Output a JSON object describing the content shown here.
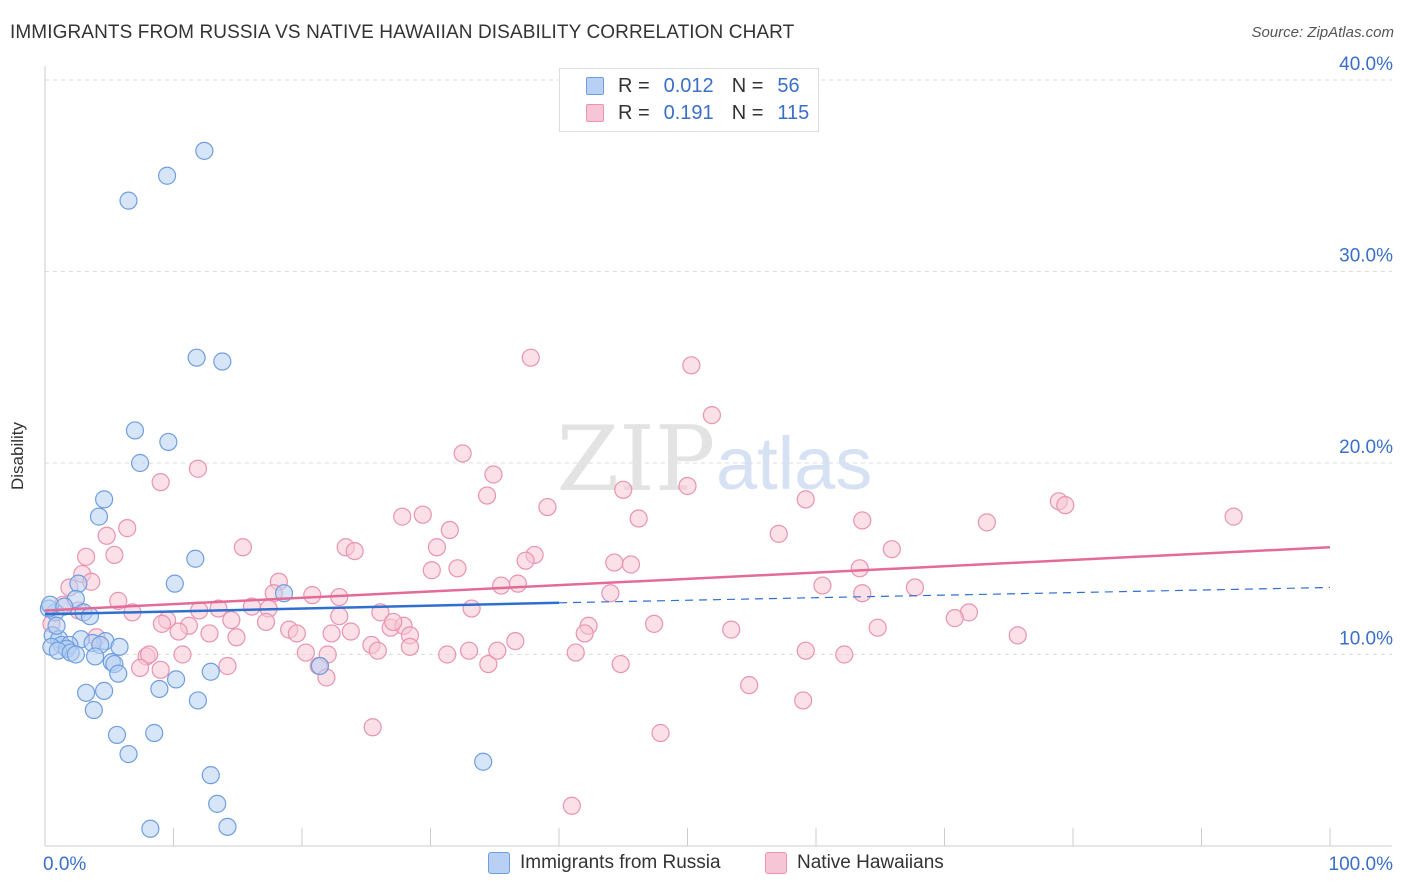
{
  "title": "IMMIGRANTS FROM RUSSIA VS NATIVE HAWAIIAN DISABILITY CORRELATION CHART",
  "source": "Source: ZipAtlas.com",
  "watermark": {
    "zip": "ZIP",
    "atlas": "atlas"
  },
  "colors": {
    "blue_fill": "#b7d0f3",
    "blue_stroke": "#6f9ee0",
    "blue_line": "#2f6fd0",
    "pink_fill": "#f7c6d6",
    "pink_stroke": "#e993b0",
    "pink_line": "#e36b97",
    "axis_text": "#3a6fc8",
    "grid": "#dddddd"
  },
  "legend": {
    "entries": [
      {
        "name": "blue",
        "r_label": "R =",
        "r_value": "0.012",
        "n_label": "N =",
        "n_value": "56"
      },
      {
        "name": "pink",
        "r_label": "R =",
        "r_value": "0.191",
        "n_label": "N =",
        "n_value": "115"
      }
    ]
  },
  "chart_data": {
    "type": "scatter",
    "title": "IMMIGRANTS FROM RUSSIA VS NATIVE HAWAIIAN DISABILITY CORRELATION CHART",
    "xlabel": "",
    "ylabel": "Disability",
    "xlim": [
      0,
      100
    ],
    "ylim": [
      0,
      40
    ],
    "x_tick_labels": [
      "0.0%",
      "100.0%"
    ],
    "y_ticks": [
      10,
      20,
      30,
      40
    ],
    "y_tick_labels": [
      "10.0%",
      "20.0%",
      "30.0%",
      "40.0%"
    ],
    "grid": true,
    "series": [
      {
        "name": "Immigrants from Russia",
        "color": "blue",
        "trend": {
          "x": [
            0,
            40
          ],
          "y": [
            12.1,
            12.7
          ],
          "extended_to": [
            100,
            13.5
          ]
        },
        "points": [
          [
            12.4,
            36.3
          ],
          [
            9.5,
            35.0
          ],
          [
            6.5,
            33.7
          ],
          [
            11.8,
            25.5
          ],
          [
            13.8,
            25.3
          ],
          [
            7.0,
            21.7
          ],
          [
            9.6,
            21.1
          ],
          [
            7.4,
            20.0
          ],
          [
            4.6,
            18.1
          ],
          [
            4.2,
            17.2
          ],
          [
            11.7,
            15.0
          ],
          [
            10.1,
            13.7
          ],
          [
            2.6,
            13.7
          ],
          [
            2.4,
            12.9
          ],
          [
            18.6,
            13.2
          ],
          [
            3.0,
            12.2
          ],
          [
            3.5,
            12.0
          ],
          [
            0.8,
            12.2
          ],
          [
            0.6,
            11.0
          ],
          [
            1.1,
            10.8
          ],
          [
            2.8,
            10.8
          ],
          [
            4.7,
            10.7
          ],
          [
            3.7,
            10.6
          ],
          [
            1.3,
            10.5
          ],
          [
            1.9,
            10.5
          ],
          [
            0.5,
            10.4
          ],
          [
            1.7,
            10.3
          ],
          [
            4.3,
            10.5
          ],
          [
            5.8,
            10.4
          ],
          [
            1.0,
            10.2
          ],
          [
            2.0,
            10.1
          ],
          [
            2.4,
            10.0
          ],
          [
            3.9,
            9.9
          ],
          [
            5.2,
            9.6
          ],
          [
            5.4,
            9.5
          ],
          [
            21.4,
            9.4
          ],
          [
            12.9,
            9.1
          ],
          [
            5.7,
            9.0
          ],
          [
            10.2,
            8.7
          ],
          [
            3.2,
            8.0
          ],
          [
            4.6,
            8.1
          ],
          [
            8.9,
            8.2
          ],
          [
            11.9,
            7.6
          ],
          [
            3.8,
            7.1
          ],
          [
            5.6,
            5.8
          ],
          [
            8.5,
            5.9
          ],
          [
            6.5,
            4.8
          ],
          [
            34.1,
            4.4
          ],
          [
            12.9,
            3.7
          ],
          [
            13.4,
            2.2
          ],
          [
            8.2,
            0.9
          ],
          [
            14.2,
            1.0
          ],
          [
            0.3,
            12.4
          ],
          [
            0.4,
            12.6
          ],
          [
            1.5,
            12.5
          ],
          [
            0.9,
            11.5
          ]
        ]
      },
      {
        "name": "Native Hawaiians",
        "color": "pink",
        "trend": {
          "x": [
            0,
            100
          ],
          "y": [
            12.3,
            15.6
          ]
        },
        "points": [
          [
            37.8,
            25.5
          ],
          [
            50.3,
            25.1
          ],
          [
            51.9,
            22.5
          ],
          [
            32.5,
            20.5
          ],
          [
            11.9,
            19.7
          ],
          [
            34.9,
            19.4
          ],
          [
            9.0,
            19.0
          ],
          [
            50.0,
            18.8
          ],
          [
            34.4,
            18.3
          ],
          [
            45.0,
            18.6
          ],
          [
            59.2,
            18.1
          ],
          [
            78.9,
            18.0
          ],
          [
            79.4,
            17.8
          ],
          [
            39.1,
            17.7
          ],
          [
            29.4,
            17.3
          ],
          [
            27.8,
            17.2
          ],
          [
            92.5,
            17.2
          ],
          [
            46.2,
            17.1
          ],
          [
            63.6,
            17.0
          ],
          [
            73.3,
            16.9
          ],
          [
            6.4,
            16.6
          ],
          [
            31.5,
            16.5
          ],
          [
            57.1,
            16.3
          ],
          [
            4.8,
            16.2
          ],
          [
            15.4,
            15.6
          ],
          [
            23.4,
            15.6
          ],
          [
            30.5,
            15.6
          ],
          [
            24.1,
            15.4
          ],
          [
            65.9,
            15.5
          ],
          [
            5.4,
            15.2
          ],
          [
            38.1,
            15.2
          ],
          [
            3.2,
            15.1
          ],
          [
            37.4,
            14.9
          ],
          [
            44.3,
            14.8
          ],
          [
            45.6,
            14.7
          ],
          [
            32.1,
            14.5
          ],
          [
            30.1,
            14.4
          ],
          [
            63.4,
            14.5
          ],
          [
            2.9,
            14.2
          ],
          [
            3.6,
            13.8
          ],
          [
            18.2,
            13.8
          ],
          [
            36.8,
            13.7
          ],
          [
            35.5,
            13.6
          ],
          [
            60.5,
            13.6
          ],
          [
            67.7,
            13.5
          ],
          [
            1.9,
            13.5
          ],
          [
            17.8,
            13.2
          ],
          [
            20.8,
            13.1
          ],
          [
            44.0,
            13.2
          ],
          [
            63.6,
            13.2
          ],
          [
            22.9,
            13.0
          ],
          [
            5.7,
            12.8
          ],
          [
            1.4,
            12.6
          ],
          [
            16.1,
            12.5
          ],
          [
            17.4,
            12.4
          ],
          [
            12.0,
            12.3
          ],
          [
            13.5,
            12.4
          ],
          [
            26.1,
            12.2
          ],
          [
            33.2,
            12.4
          ],
          [
            71.9,
            12.2
          ],
          [
            2.6,
            12.3
          ],
          [
            6.8,
            12.2
          ],
          [
            22.9,
            12.0
          ],
          [
            70.8,
            11.9
          ],
          [
            9.5,
            11.8
          ],
          [
            14.5,
            11.8
          ],
          [
            17.2,
            11.7
          ],
          [
            0.5,
            11.6
          ],
          [
            9.1,
            11.6
          ],
          [
            11.2,
            11.5
          ],
          [
            26.9,
            11.4
          ],
          [
            27.9,
            11.5
          ],
          [
            42.3,
            11.5
          ],
          [
            47.4,
            11.6
          ],
          [
            53.4,
            11.3
          ],
          [
            64.8,
            11.4
          ],
          [
            19.0,
            11.3
          ],
          [
            10.4,
            11.2
          ],
          [
            12.8,
            11.1
          ],
          [
            19.6,
            11.1
          ],
          [
            22.3,
            11.1
          ],
          [
            28.4,
            11.0
          ],
          [
            42.0,
            11.1
          ],
          [
            75.7,
            11.0
          ],
          [
            36.6,
            10.7
          ],
          [
            25.4,
            10.5
          ],
          [
            28.4,
            10.4
          ],
          [
            25.9,
            10.2
          ],
          [
            33.0,
            10.2
          ],
          [
            20.3,
            10.1
          ],
          [
            22.0,
            10.0
          ],
          [
            31.3,
            10.0
          ],
          [
            41.3,
            10.1
          ],
          [
            59.2,
            10.2
          ],
          [
            62.2,
            10.0
          ],
          [
            7.9,
            9.9
          ],
          [
            8.1,
            10.0
          ],
          [
            10.7,
            10.0
          ],
          [
            34.5,
            9.5
          ],
          [
            44.8,
            9.5
          ],
          [
            14.2,
            9.4
          ],
          [
            21.3,
            9.4
          ],
          [
            9.0,
            9.2
          ],
          [
            7.4,
            9.3
          ],
          [
            21.9,
            8.8
          ],
          [
            54.8,
            8.4
          ],
          [
            59.0,
            7.6
          ],
          [
            25.5,
            6.2
          ],
          [
            47.9,
            5.9
          ],
          [
            41.0,
            2.1
          ],
          [
            4.0,
            10.9
          ],
          [
            35.2,
            10.2
          ],
          [
            23.8,
            11.2
          ],
          [
            14.9,
            10.9
          ],
          [
            27.1,
            11.7
          ]
        ]
      }
    ]
  }
}
